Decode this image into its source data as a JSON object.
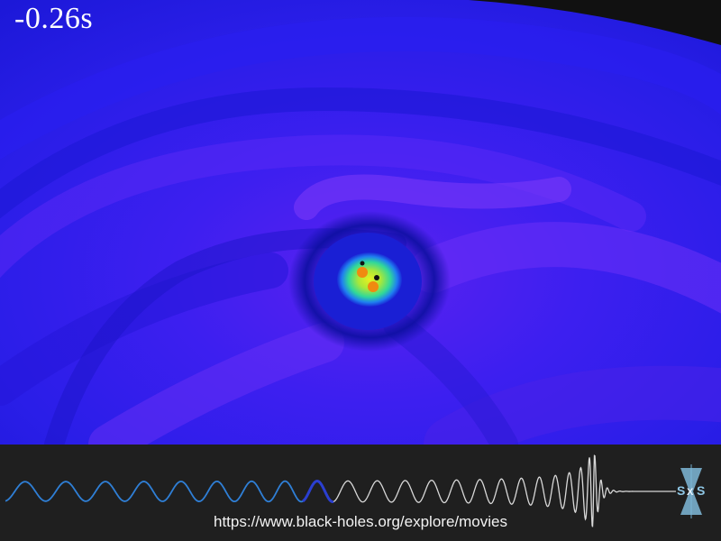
{
  "overlay": {
    "time": "-0.26s"
  },
  "footer": {
    "url": "https://www.black-holes.org/explore/movies"
  },
  "icons": {
    "logo": "sxs-logo-icon"
  },
  "colors": {
    "past_wave": "#2f7fd6",
    "current_wave": "#2b3fd0",
    "future_wave": "#d8d8d8",
    "strip_bg": "#1f1f1f"
  }
}
